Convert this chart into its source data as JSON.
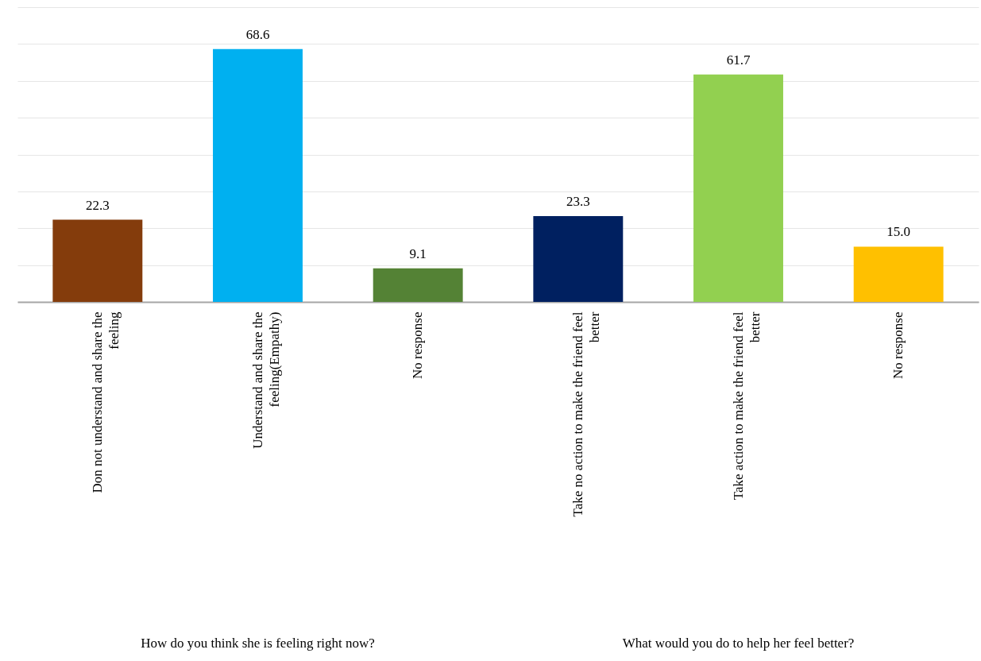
{
  "chart_data": {
    "type": "bar",
    "categories": [
      "Don not understand and share the feeling",
      "Understand and share the feeling(Empathy)",
      "No response",
      "Take no action to make the friend feel better",
      "Take  action to make the friend feel better",
      "No response"
    ],
    "values": [
      22.3,
      68.6,
      9.1,
      23.3,
      61.7,
      15.0
    ],
    "value_labels": [
      "22.3",
      "68.6",
      "9.1",
      "23.3",
      "61.7",
      "15.0"
    ],
    "colors": [
      "#843c0c",
      "#00b0f0",
      "#548235",
      "#002060",
      "#92d050",
      "#ffc000"
    ],
    "ylim": [
      0,
      80
    ],
    "yticks": [
      {
        "value": 0,
        "label": null
      },
      {
        "value": 10,
        "label": null
      },
      {
        "value": 20,
        "label": null
      },
      {
        "value": 30,
        "label": null
      },
      {
        "value": 40,
        "label": null
      },
      {
        "value": 50,
        "label": null
      },
      {
        "value": 60,
        "label": null
      },
      {
        "value": 70,
        "label": null
      },
      {
        "value": 80,
        "label": null
      }
    ],
    "grid": "y",
    "tick_labels": "x",
    "annotations": [
      "How do you think she is feeling right now?",
      "What would you do to help her feel better?"
    ]
  }
}
